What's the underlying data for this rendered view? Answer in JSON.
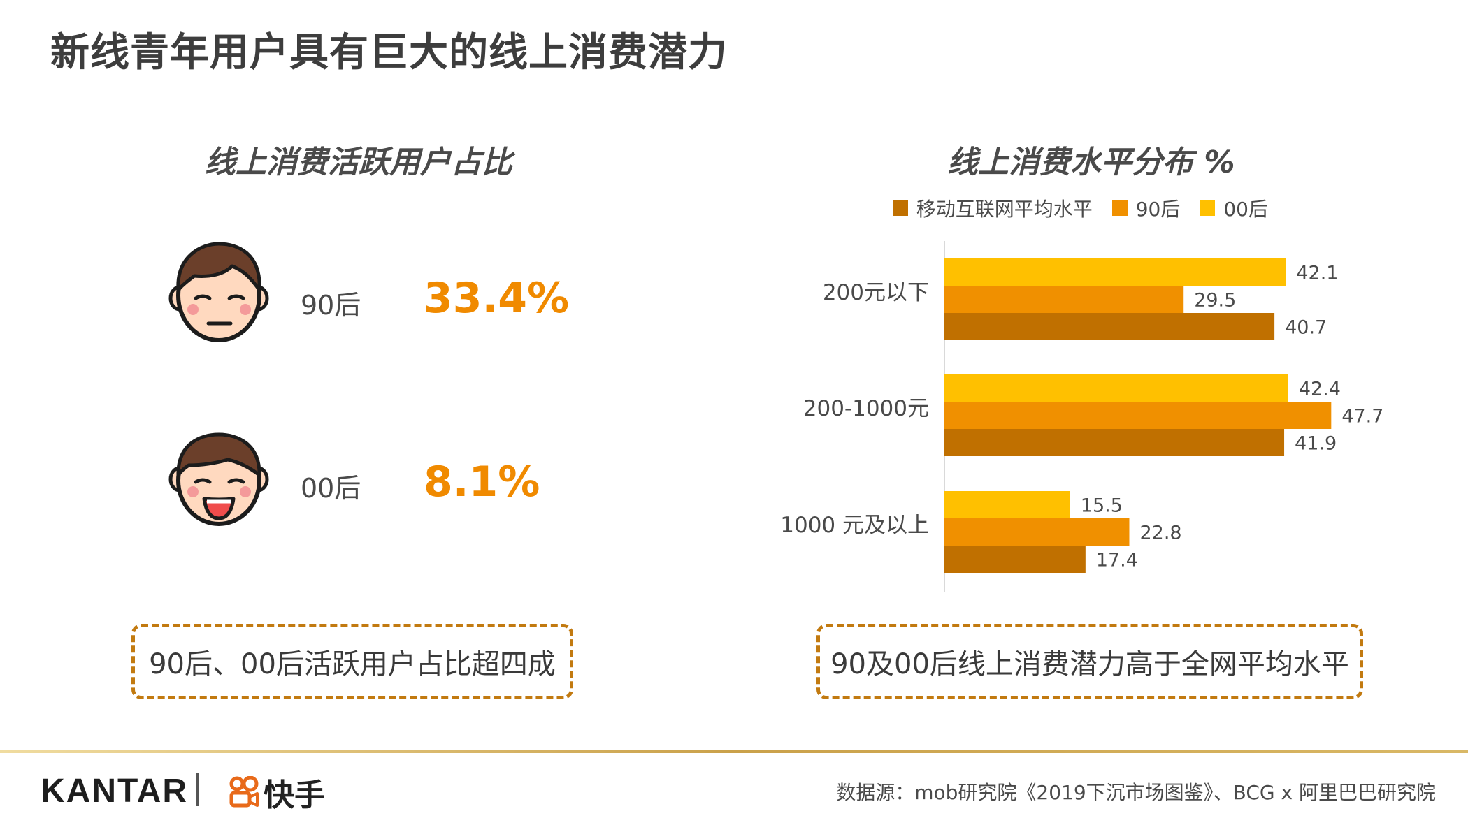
{
  "page_title": "新线青年用户具有巨大的线上消费潜力",
  "left_panel": {
    "title": "线上消费活跃用户占比",
    "groups": [
      {
        "label": "90后",
        "value": "33.4%"
      },
      {
        "label": "00后",
        "value": "8.1%"
      }
    ],
    "callout": "90后、00后活跃用户占比超四成"
  },
  "chart_data": {
    "type": "bar",
    "orientation": "horizontal",
    "title": "线上消费水平分布 %",
    "categories": [
      "200元以下",
      "200-1000元",
      "1000 元及以上"
    ],
    "series": [
      {
        "name": "移动互联网平均水平",
        "color": "#c07000",
        "values": [
          40.7,
          41.9,
          17.4
        ]
      },
      {
        "name": "90后",
        "color": "#f09000",
        "values": [
          29.5,
          47.7,
          22.8
        ]
      },
      {
        "name": "00后",
        "color": "#ffc000",
        "values": [
          42.1,
          42.4,
          15.5
        ]
      }
    ],
    "legend": [
      "移动互联网平均水平",
      "90后",
      "00后"
    ],
    "xlim": [
      0,
      50
    ],
    "grid": false,
    "legend_position": "top"
  },
  "right_panel": {
    "callout": "90及00后线上消费潜力高于全网平均水平"
  },
  "footer": {
    "brand1": "KANTAR",
    "brand2": "快手",
    "source": "数据源：mob研究院《2019下沉市场图鉴》、BCG x 阿里巴巴研究院"
  },
  "colors": {
    "accent": "#f08a00",
    "dash": "#c27a10",
    "face_skin": "#ffd9bf",
    "face_hair": "#6b3f2a"
  }
}
